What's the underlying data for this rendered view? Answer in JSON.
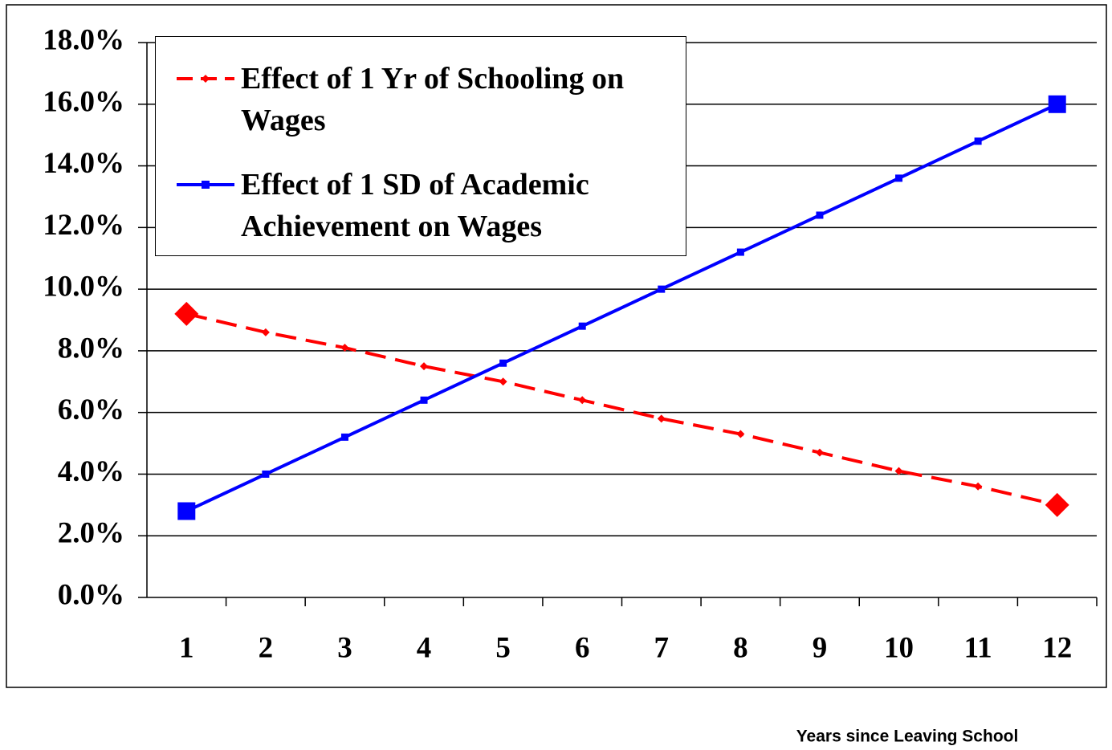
{
  "chart_data": {
    "type": "line",
    "x_label": "Years since Leaving School",
    "categories": [
      "1",
      "2",
      "3",
      "4",
      "5",
      "6",
      "7",
      "8",
      "9",
      "10",
      "11",
      "12"
    ],
    "series": [
      {
        "name": "Effect of 1 Yr of Schooling on Wages",
        "color": "#ff0000",
        "dash": true,
        "marker": "diamond",
        "values": [
          9.2,
          8.6,
          8.1,
          7.5,
          7.0,
          6.4,
          5.8,
          5.3,
          4.7,
          4.1,
          3.6,
          3.0
        ]
      },
      {
        "name": "Effect of 1 SD of Academic Achievement on Wages",
        "color": "#0000ff",
        "dash": false,
        "marker": "square",
        "values": [
          2.8,
          4.0,
          5.2,
          6.4,
          7.6,
          8.8,
          10.0,
          11.2,
          12.4,
          13.6,
          14.8,
          16.0
        ]
      }
    ],
    "ylim": [
      0,
      18
    ],
    "yticks": [
      {
        "value": 0,
        "label": "0.0%"
      },
      {
        "value": 2,
        "label": "2.0%"
      },
      {
        "value": 4,
        "label": "4.0%"
      },
      {
        "value": 6,
        "label": "6.0%"
      },
      {
        "value": 8,
        "label": "8.0%"
      },
      {
        "value": 10,
        "label": "10.0%"
      },
      {
        "value": 12,
        "label": "12.0%"
      },
      {
        "value": 14,
        "label": "14.0%"
      },
      {
        "value": 16,
        "label": "16.0%"
      },
      {
        "value": 18,
        "label": "18.0%"
      }
    ],
    "grid": true,
    "legend": "upper left"
  }
}
